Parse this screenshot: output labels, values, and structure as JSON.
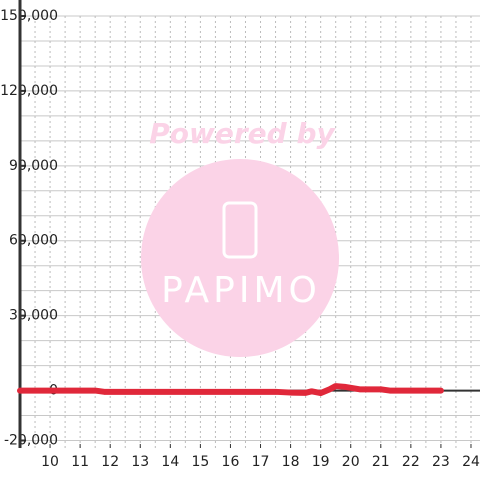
{
  "chart_data": {
    "type": "line",
    "watermark": {
      "line1": "Powered by",
      "line2": "PAPIMO"
    },
    "x": [
      9,
      11.5,
      11.8,
      17.5,
      18,
      18.5,
      18.7,
      19,
      19.3,
      19.5,
      19.8,
      20.3,
      21,
      21.3,
      23
    ],
    "series": [
      {
        "color": "#e0283a",
        "values": [
          0,
          0,
          -500,
          -500,
          -800,
          -900,
          -300,
          -1000,
          500,
          1800,
          1500,
          500,
          500,
          0,
          0
        ]
      }
    ],
    "xlim": [
      9,
      24.3
    ],
    "xticks": [
      10,
      11,
      12,
      13,
      14,
      15,
      16,
      17,
      18,
      19,
      20,
      21,
      22,
      23,
      24
    ],
    "ylim": [
      -23000,
      150000
    ],
    "yticks": [
      {
        "value": -20000,
        "label": "-20,000"
      },
      0,
      {
        "value": 30000,
        "label": "30,000"
      },
      {
        "value": 60000,
        "label": "60,000"
      },
      {
        "value": 90000,
        "label": "90,000"
      },
      {
        "value": 120000,
        "label": "120,000"
      },
      {
        "value": 150000,
        "label": "150,000"
      }
    ],
    "ygrid_step": 10000,
    "xgrid_step": 0.5,
    "grid": true
  }
}
